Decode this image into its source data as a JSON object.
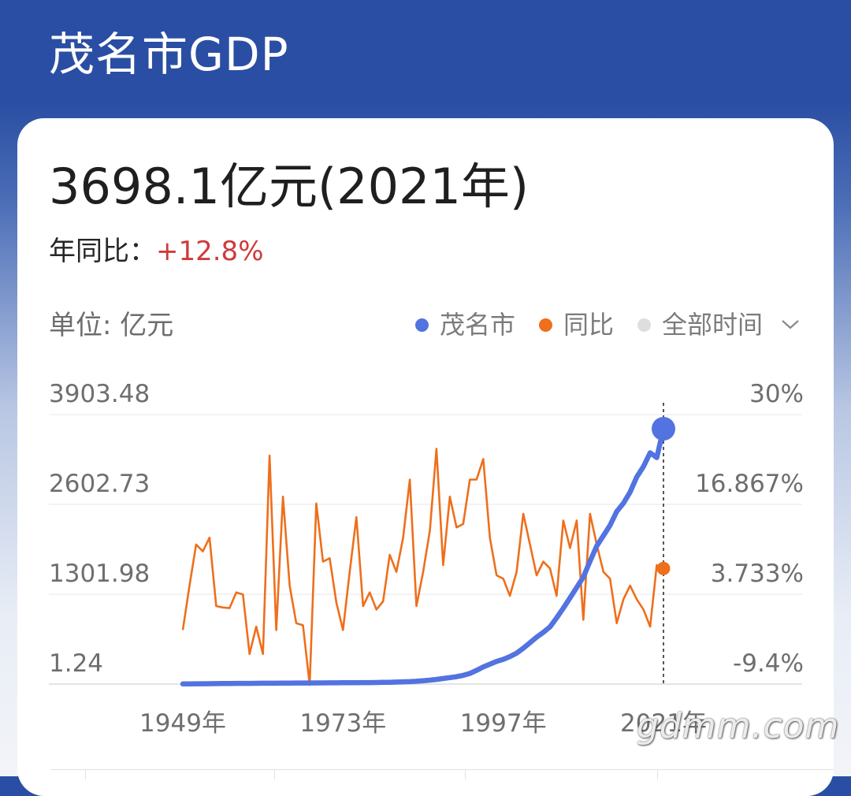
{
  "header": {
    "title": "茂名市GDP"
  },
  "summary": {
    "value": "3698.1亿元(2021年)",
    "yoy_label": "年同比：",
    "yoy_value": "+12.8%",
    "unit_label": "单位: 亿元"
  },
  "legend": {
    "series1": "茂名市",
    "series2": "同比",
    "time_filter": "全部时间"
  },
  "watermark": "gdmm.com",
  "colors": {
    "gdp": "#5273e0",
    "yoy": "#ee6f1c",
    "header": "#2a4ea3",
    "positive": "#d03a3a"
  },
  "chart_data": {
    "type": "line",
    "x": [
      1949,
      1950,
      1951,
      1952,
      1953,
      1954,
      1955,
      1956,
      1957,
      1958,
      1959,
      1960,
      1961,
      1962,
      1963,
      1964,
      1965,
      1966,
      1967,
      1968,
      1969,
      1970,
      1971,
      1972,
      1973,
      1974,
      1975,
      1976,
      1977,
      1978,
      1979,
      1980,
      1981,
      1982,
      1983,
      1984,
      1985,
      1986,
      1987,
      1988,
      1989,
      1990,
      1991,
      1992,
      1993,
      1994,
      1995,
      1996,
      1997,
      1998,
      1999,
      2000,
      2001,
      2002,
      2003,
      2004,
      2005,
      2006,
      2007,
      2008,
      2009,
      2010,
      2011,
      2012,
      2013,
      2014,
      2015,
      2016,
      2017,
      2018,
      2019,
      2020,
      2021
    ],
    "x_ticks": [
      "1949年",
      "1973年",
      "1997年",
      "2021年"
    ],
    "y_left_ticks": [
      "3903.48",
      "2602.73",
      "1301.98",
      "1.24"
    ],
    "y_left_range": [
      1.24,
      3903.48
    ],
    "y_right_ticks": [
      "30%",
      "16.867%",
      "3.733%",
      "-9.4%"
    ],
    "y_right_range": [
      -9.4,
      30
    ],
    "series": [
      {
        "name": "茂名市",
        "axis": "left",
        "values": [
          4,
          5,
          6,
          6,
          7,
          8,
          9,
          10,
          11,
          12,
          12,
          13,
          14,
          14,
          14,
          15,
          16,
          17,
          17,
          17,
          18,
          18,
          19,
          20,
          21,
          21,
          22,
          23,
          23,
          24,
          26,
          28,
          31,
          34,
          37,
          42,
          50,
          58,
          68,
          82,
          95,
          108,
          128,
          155,
          200,
          250,
          290,
          330,
          360,
          400,
          450,
          520,
          600,
          680,
          750,
          830,
          960,
          1100,
          1250,
          1400,
          1550,
          1780,
          2000,
          2150,
          2300,
          2500,
          2620,
          2780,
          3000,
          3150,
          3350,
          3280,
          3698.1
        ]
      },
      {
        "name": "同比",
        "axis": "right",
        "values": [
          -1.5,
          5,
          11,
          10,
          12,
          2,
          1.8,
          1.7,
          4,
          3.7,
          -5,
          -1,
          -5,
          24,
          -1.5,
          18,
          5,
          -0.5,
          -0.8,
          -9.5,
          17,
          8.5,
          9,
          2.5,
          -1.5,
          7,
          15,
          2,
          4,
          1.5,
          2.7,
          9.5,
          7,
          12,
          20.5,
          2,
          7,
          13,
          25,
          8,
          18,
          13.5,
          14,
          20.5,
          20.5,
          23.5,
          12,
          6.5,
          6,
          3.5,
          7,
          15.5,
          11,
          6.5,
          8.5,
          7.5,
          3.5,
          14.5,
          10.5,
          14.5,
          0,
          15.5,
          11,
          7,
          6,
          -0.5,
          3,
          5,
          3,
          1.5,
          -1,
          8,
          7.5
        ]
      }
    ],
    "highlight": {
      "x": 2021,
      "gdp": 3698.1,
      "yoy": 7.5
    }
  }
}
